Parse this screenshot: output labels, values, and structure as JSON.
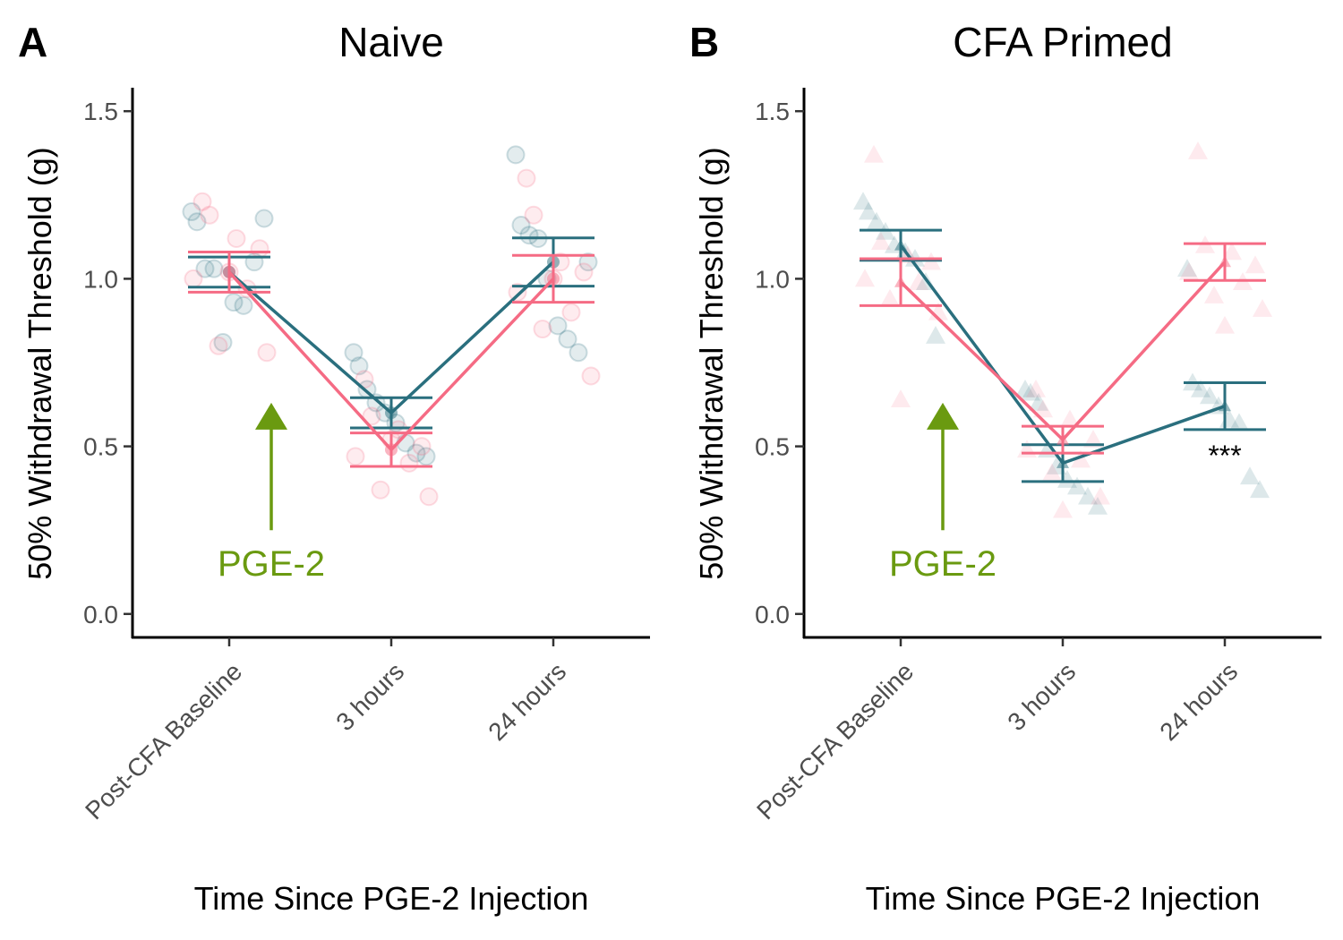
{
  "chart_data": [
    {
      "type": "line",
      "panel_label": "A",
      "title": "Naive",
      "xlabel": "Time Since PGE-2 Injection",
      "ylabel": "50% Withdrawal Threshold (g)",
      "categories": [
        "Post-CFA Baseline",
        "3 hours",
        "24 hours"
      ],
      "ylim": [
        -0.07,
        1.57
      ],
      "yticks": [
        0.0,
        0.5,
        1.0,
        1.5
      ],
      "ytick_labels": [
        "0.0",
        "0.5",
        "1.0",
        "1.5"
      ],
      "grid": false,
      "annotation": {
        "text": "PGE-2",
        "at_category": "Post-CFA Baseline",
        "y_from": 0.25,
        "y_to": 0.63,
        "color": "#6a9a10"
      },
      "sig_label": "",
      "marker": "circle",
      "series": [
        {
          "color": "#2a6f7e",
          "mean": [
            1.02,
            0.6,
            1.05
          ],
          "se": [
            0.045,
            0.045,
            0.072
          ],
          "points": [
            [
              1.2,
              1.17,
              1.03,
              1.03,
              0.81,
              0.93,
              0.92,
              1.05,
              1.18
            ],
            [
              0.78,
              0.74,
              0.67,
              0.63,
              0.6,
              0.57,
              0.51,
              0.48,
              0.47
            ],
            [
              1.37,
              1.16,
              1.13,
              1.12,
              1.0,
              0.86,
              0.82,
              0.78,
              1.05
            ]
          ]
        },
        {
          "color": "#f56b84",
          "mean": [
            1.02,
            0.49,
            1.0
          ],
          "se": [
            0.06,
            0.05,
            0.07
          ],
          "points": [
            [
              1.23,
              1.19,
              1.12,
              1.09,
              1.0,
              0.97,
              0.8,
              0.78,
              1.02
            ],
            [
              0.7,
              0.59,
              0.55,
              0.5,
              0.47,
              0.45,
              0.37,
              0.35,
              0.52
            ],
            [
              1.3,
              1.19,
              1.05,
              1.02,
              0.96,
              0.9,
              0.85,
              0.71,
              1.0
            ]
          ]
        }
      ]
    },
    {
      "type": "line",
      "panel_label": "B",
      "title": "CFA Primed",
      "xlabel": "Time Since PGE-2 Injection",
      "ylabel": "50% Withdrawal Threshold (g)",
      "categories": [
        "Post-CFA Baseline",
        "3 hours",
        "24 hours"
      ],
      "ylim": [
        -0.07,
        1.57
      ],
      "yticks": [
        0.0,
        0.5,
        1.0,
        1.5
      ],
      "ytick_labels": [
        "0.0",
        "0.5",
        "1.0",
        "1.5"
      ],
      "grid": false,
      "annotation": {
        "text": "PGE-2",
        "at_category": "Post-CFA Baseline",
        "y_from": 0.25,
        "y_to": 0.63,
        "color": "#6a9a10"
      },
      "sig_label": "***",
      "marker": "triangle",
      "series": [
        {
          "color": "#2a6f7e",
          "mean": [
            1.1,
            0.45,
            0.62
          ],
          "se": [
            0.045,
            0.055,
            0.07
          ],
          "points": [
            [
              1.23,
              1.2,
              1.17,
              1.14,
              1.1,
              1.08,
              1.06,
              0.99,
              0.83
            ],
            [
              0.67,
              0.66,
              0.63,
              0.49,
              0.44,
              0.4,
              0.38,
              0.35,
              0.32
            ],
            [
              1.03,
              0.69,
              0.67,
              0.65,
              0.62,
              0.58,
              0.57,
              0.41,
              0.37
            ]
          ]
        },
        {
          "color": "#f56b84",
          "mean": [
            0.99,
            0.52,
            1.05
          ],
          "se": [
            0.07,
            0.04,
            0.055
          ],
          "points": [
            [
              1.37,
              1.11,
              1.07,
              1.05,
              1.0,
              0.99,
              0.94,
              0.9,
              0.64
            ],
            [
              0.67,
              0.61,
              0.58,
              0.52,
              0.49,
              0.46,
              0.42,
              0.35,
              0.31
            ],
            [
              1.38,
              1.1,
              1.08,
              1.04,
              1.02,
              0.99,
              0.95,
              0.91,
              0.86
            ]
          ]
        }
      ]
    }
  ]
}
